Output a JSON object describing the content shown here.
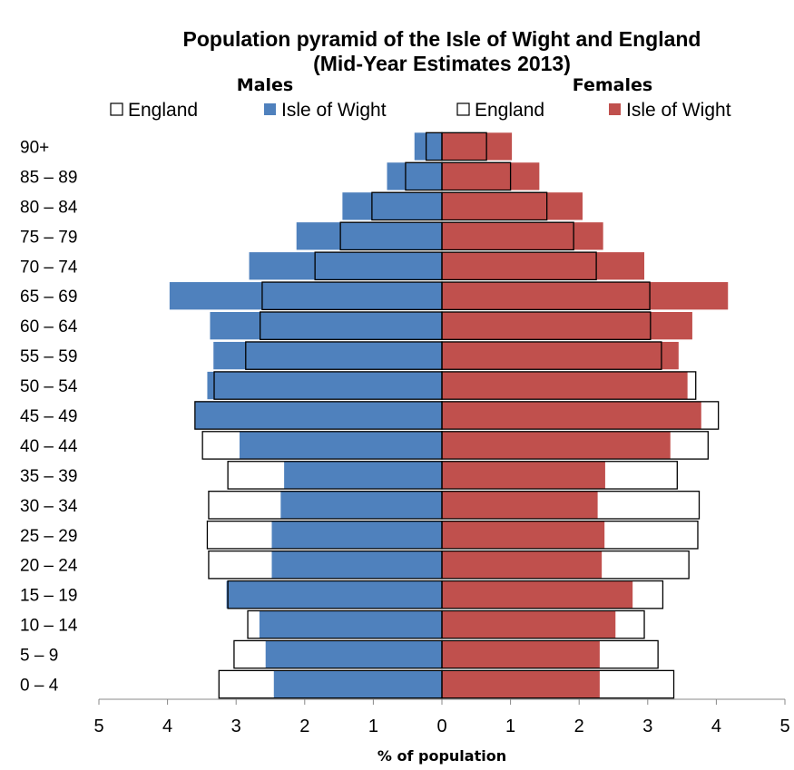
{
  "chart_data": {
    "type": "bar",
    "title_line1": "Population pyramid of the Isle of Wight and England",
    "title_line2": "(Mid-Year Estimates 2013)",
    "males_label": "Males",
    "females_label": "Females",
    "xlabel": "% of population",
    "xlim": [
      -5,
      5
    ],
    "xticks": [
      -5,
      -4,
      -3,
      -2,
      -1,
      0,
      1,
      2,
      3,
      4,
      5
    ],
    "xtick_labels": [
      "5",
      "4",
      "3",
      "2",
      "1",
      "0",
      "1",
      "2",
      "3",
      "4",
      "5"
    ],
    "categories": [
      "0 – 4",
      "5 – 9",
      "10 – 14",
      "15 – 19",
      "20 – 24",
      "25 – 29",
      "30 – 34",
      "35 – 39",
      "40 – 44",
      "45 – 49",
      "50 – 54",
      "55 – 59",
      "60 – 64",
      "65 – 69",
      "70 – 74",
      "75 – 79",
      "80 – 84",
      "85 – 89",
      "90+"
    ],
    "legend": [
      {
        "label": "England",
        "color": "#ffffff",
        "outline": "#000000"
      },
      {
        "label": "Isle of Wight",
        "color": "#4f81bd"
      },
      {
        "label": "England",
        "color": "#ffffff",
        "outline": "#000000"
      },
      {
        "label": "Isle of Wight",
        "color": "#c0504d"
      }
    ],
    "colors": {
      "iow_male": "#4f81bd",
      "iow_female": "#c0504d",
      "england": "#ffffff",
      "outline": "#000000"
    },
    "series": [
      {
        "name": "England",
        "sex": "male",
        "values": [
          3.25,
          3.03,
          2.83,
          3.12,
          3.4,
          3.42,
          3.4,
          3.12,
          3.49,
          3.6,
          3.32,
          2.86,
          2.65,
          2.62,
          1.85,
          1.48,
          1.02,
          0.53,
          0.23
        ]
      },
      {
        "name": "Isle of Wight",
        "sex": "male",
        "values": [
          2.45,
          2.57,
          2.66,
          3.14,
          2.48,
          2.48,
          2.35,
          2.3,
          2.95,
          3.6,
          3.42,
          3.33,
          3.38,
          3.97,
          2.81,
          2.12,
          1.45,
          0.8,
          0.4
        ]
      },
      {
        "name": "England",
        "sex": "female",
        "values": [
          3.38,
          3.15,
          2.95,
          3.22,
          3.6,
          3.73,
          3.75,
          3.43,
          3.88,
          4.03,
          3.7,
          3.2,
          3.04,
          3.03,
          2.25,
          1.92,
          1.53,
          1.0,
          0.65
        ]
      },
      {
        "name": "Isle of Wight",
        "sex": "female",
        "values": [
          2.3,
          2.3,
          2.53,
          2.78,
          2.33,
          2.37,
          2.27,
          2.38,
          3.33,
          3.78,
          3.58,
          3.45,
          3.65,
          4.17,
          2.95,
          2.35,
          2.05,
          1.42,
          1.02
        ]
      }
    ]
  }
}
